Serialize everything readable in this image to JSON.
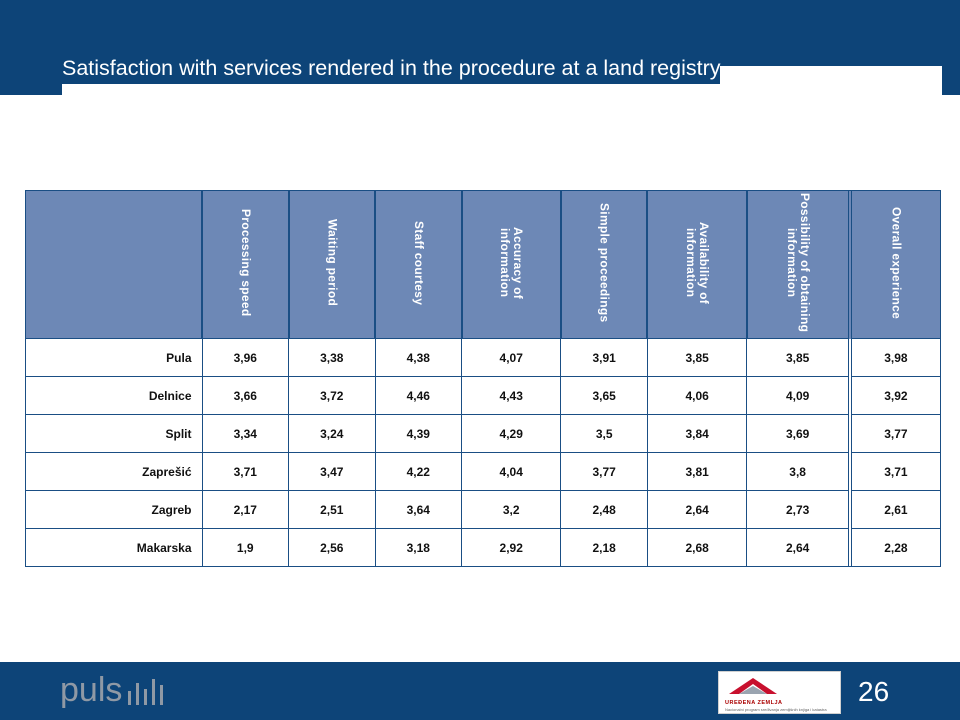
{
  "slide": {
    "title": "Satisfaction with services rendered in the procedure at a land registry",
    "page_number": "26"
  },
  "table": {
    "columns": [
      "Processing speed",
      "Waiting period",
      "Staff courtesy",
      "Accuracy of information",
      "Simple proceedings",
      "Availability of information",
      "Possibility of obtaining information",
      "Overall experience"
    ],
    "rows": [
      {
        "city": "Pula",
        "values": [
          "3,96",
          "3,38",
          "4,38",
          "4,07",
          "3,91",
          "3,85",
          "3,85",
          "3,98"
        ]
      },
      {
        "city": "Delnice",
        "values": [
          "3,66",
          "3,72",
          "4,46",
          "4,43",
          "3,65",
          "4,06",
          "4,09",
          "3,92"
        ]
      },
      {
        "city": "Split",
        "values": [
          "3,34",
          "3,24",
          "4,39",
          "4,29",
          "3,5",
          "3,84",
          "3,69",
          "3,77"
        ]
      },
      {
        "city": "Zaprešić",
        "values": [
          "3,71",
          "3,47",
          "4,22",
          "4,04",
          "3,77",
          "3,81",
          "3,8",
          "3,71"
        ]
      },
      {
        "city": "Zagreb",
        "values": [
          "2,17",
          "2,51",
          "3,64",
          "3,2",
          "2,48",
          "2,64",
          "2,73",
          "2,61"
        ]
      },
      {
        "city": "Makarska",
        "values": [
          "1,9",
          "2,56",
          "3,18",
          "2,92",
          "2,18",
          "2,68",
          "2,64",
          "2,28"
        ]
      }
    ]
  },
  "footer": {
    "brand_logo": "puls",
    "partner_logo_text": "UREĐENA ZEMLJA",
    "partner_logo_subtext": "Nacionalni program sređivanja zemljišnih knjiga i katastra"
  },
  "colors": {
    "brand_blue": "#0d4478",
    "header_fill": "#6d88b6"
  }
}
